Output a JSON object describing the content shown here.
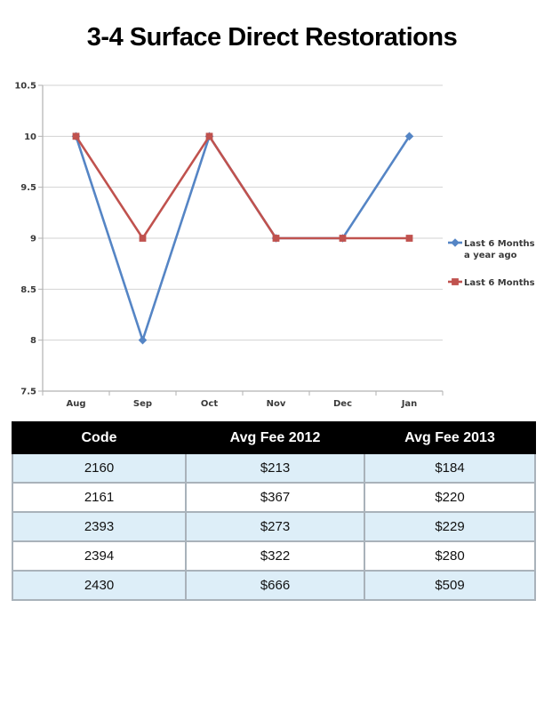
{
  "page_title": "3-4 Surface Direct Restorations",
  "chart_data": {
    "type": "line",
    "categories": [
      "Aug",
      "Sep",
      "Oct",
      "Nov",
      "Dec",
      "Jan"
    ],
    "series": [
      {
        "name": "Last 6 Months a year ago",
        "legend_lines": [
          "Last 6 Months",
          "a year ago"
        ],
        "values": [
          10,
          8,
          10,
          9,
          9,
          10
        ],
        "color": "#5585c5",
        "marker": "diamond"
      },
      {
        "name": "Last 6 Months",
        "legend_lines": [
          "Last 6 Months"
        ],
        "values": [
          10,
          9,
          10,
          9,
          9,
          9
        ],
        "color": "#c0524e",
        "marker": "square"
      }
    ],
    "title": "",
    "xlabel": "",
    "ylabel": "",
    "ylim": [
      7.5,
      10.5
    ],
    "yticks": [
      "10.5",
      "10",
      "9.5",
      "9",
      "8.5",
      "8",
      "7.5"
    ],
    "grid": true,
    "legend_position": "right"
  },
  "table": {
    "columns": [
      "Code",
      "Avg Fee 2012",
      "Avg Fee 2013"
    ],
    "rows": [
      [
        "2160",
        "$213",
        "$184"
      ],
      [
        "2161",
        "$367",
        "$220"
      ],
      [
        "2393",
        "$273",
        "$229"
      ],
      [
        "2394",
        "$322",
        "$280"
      ],
      [
        "2430",
        "$666",
        "$509"
      ]
    ]
  },
  "colors": {
    "grid": "#d2d2d2",
    "axis": "#b2b2b2",
    "tick_label": "#3a3a3a",
    "header_bg": "#000000",
    "header_text": "#ffffff",
    "row_alt_bg": "#ddeef8",
    "table_border": "#a9b2ba"
  }
}
